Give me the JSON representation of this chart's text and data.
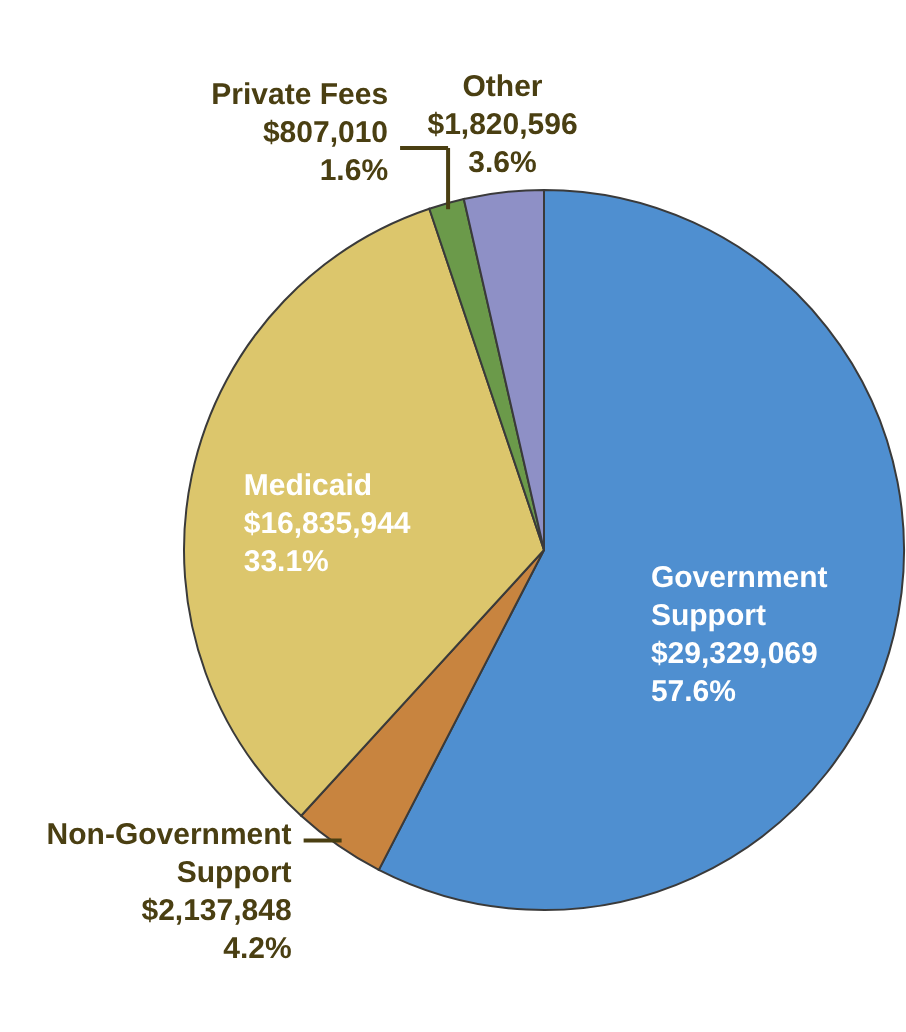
{
  "chart_data": {
    "type": "pie",
    "categories": [
      "Government Support",
      "Non-Government Support",
      "Medicaid",
      "Private Fees",
      "Other"
    ],
    "values": [
      29329069,
      2137848,
      16835944,
      807010,
      1820596
    ],
    "colors": [
      "#4f8fd0",
      "#c8843f",
      "#dcc66c",
      "#6b9a4a",
      "#8e90c6"
    ],
    "value_labels": [
      "$29,329,069\n57.6%",
      "$2,137,848\n4.2%",
      "$16,835,944\n33.1%",
      "$807,010\n1.6%",
      "$1,820,596\n3.6%"
    ]
  }
}
